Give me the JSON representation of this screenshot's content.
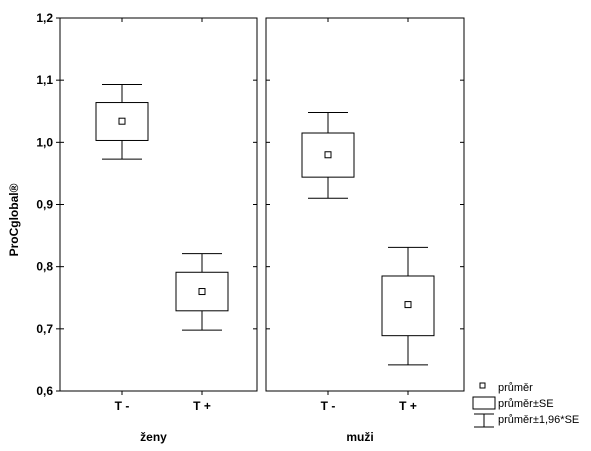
{
  "chart_data": {
    "type": "box",
    "ylabel": "ProCglobal®",
    "ylim": [
      0.6,
      1.2
    ],
    "yticks": [
      "1,2",
      "1,1",
      "1,0",
      "0,9",
      "0,8",
      "0,7",
      "0,6"
    ],
    "grid": false,
    "legend_placement": "bottom-right",
    "categories": [
      "T -",
      "T +"
    ],
    "panels": [
      {
        "name": "ženy",
        "boxes": [
          {
            "category": "T -",
            "mean": 1.034,
            "se_low": 1.003,
            "se_high": 1.064,
            "ci_low": 0.973,
            "ci_high": 1.093
          },
          {
            "category": "T +",
            "mean": 0.76,
            "se_low": 0.729,
            "se_high": 0.791,
            "ci_low": 0.698,
            "ci_high": 0.821
          }
        ]
      },
      {
        "name": "muži",
        "boxes": [
          {
            "category": "T -",
            "mean": 0.98,
            "se_low": 0.944,
            "se_high": 1.015,
            "ci_low": 0.91,
            "ci_high": 1.048
          },
          {
            "category": "T +",
            "mean": 0.739,
            "se_low": 0.689,
            "se_high": 0.785,
            "ci_low": 0.642,
            "ci_high": 0.831
          }
        ]
      }
    ],
    "legend": [
      {
        "marker": "point",
        "label": "průměr"
      },
      {
        "marker": "box",
        "label": "průměr±SE"
      },
      {
        "marker": "whisker",
        "label": "průměr±1,96*SE"
      }
    ]
  }
}
